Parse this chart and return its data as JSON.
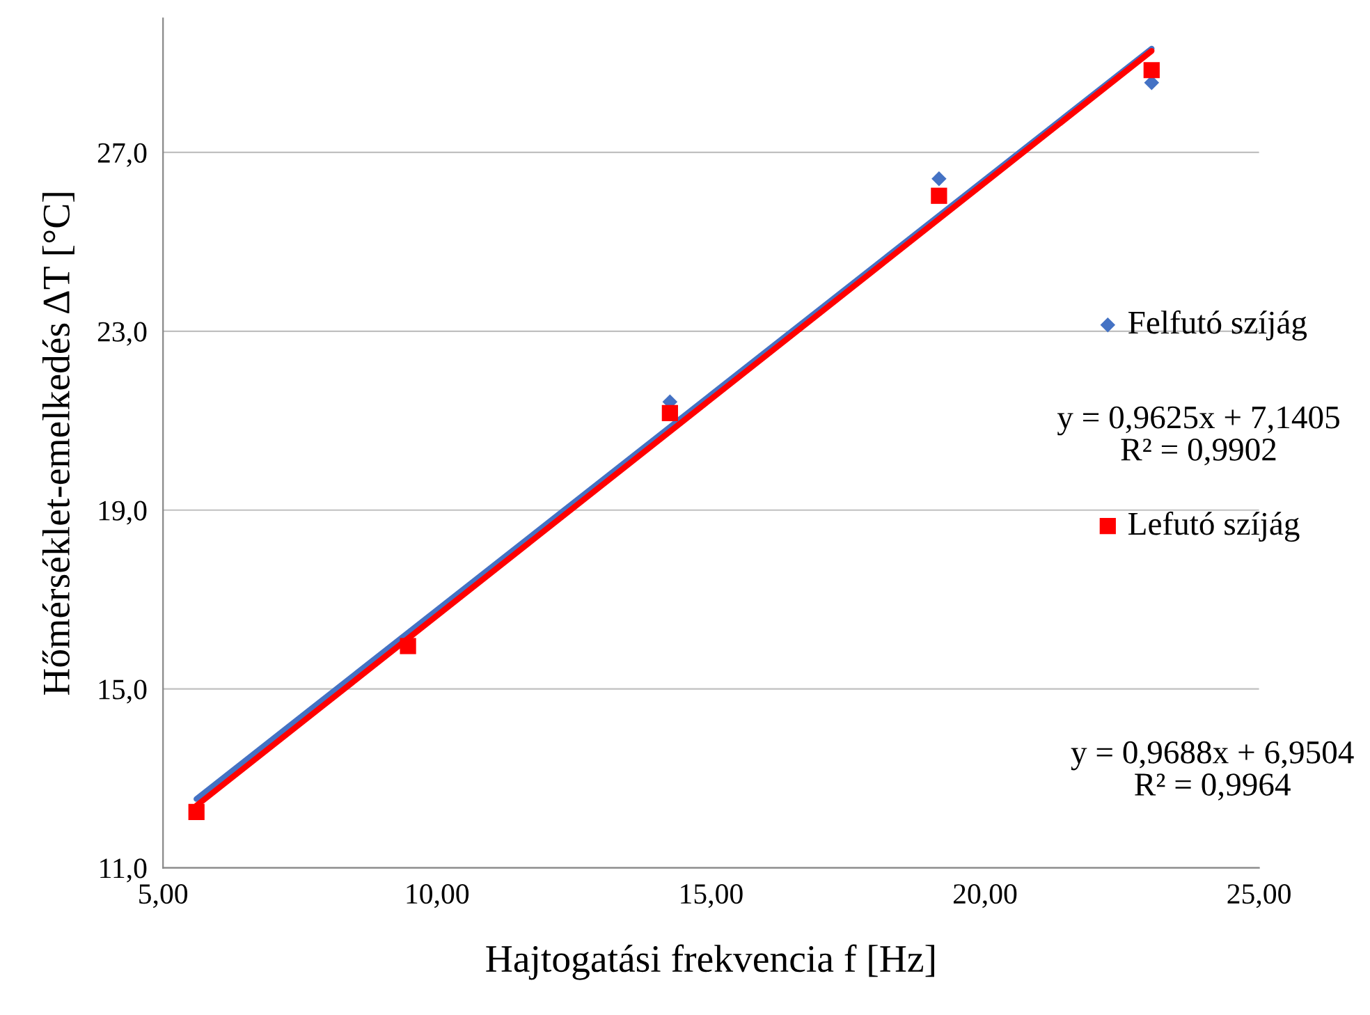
{
  "chart_data": {
    "type": "scatter",
    "xlabel": "Hajtogatási frekvencia f [Hz]",
    "ylabel": "Hőmérséklet-emelkedés ΔT [°C]",
    "xlim": [
      5,
      25
    ],
    "xticks": [
      {
        "value": 5,
        "label": "5,00"
      },
      {
        "value": 10,
        "label": "10,00"
      },
      {
        "value": 15,
        "label": "15,00"
      },
      {
        "value": 20,
        "label": "20,00"
      },
      {
        "value": 25,
        "label": "25,00"
      }
    ],
    "ylim": [
      11,
      30
    ],
    "yticks": [
      {
        "value": 11,
        "label": "11,0"
      },
      {
        "value": 15,
        "label": "15,0"
      },
      {
        "value": 19,
        "label": "19,0"
      },
      {
        "value": 23,
        "label": "23,0"
      },
      {
        "value": 27,
        "label": "27,0"
      }
    ],
    "grid": "y",
    "legend": "right",
    "series": [
      {
        "type": "line",
        "color": "#4472c4",
        "x": [
          5.61,
          23.04
        ],
        "values": [
          12.54,
          29.32
        ],
        "marker": "none"
      },
      {
        "type": "line",
        "color": "#ff0000",
        "x": [
          5.61,
          23.04
        ],
        "values": [
          12.39,
          29.27
        ],
        "marker": "none"
      },
      {
        "name": "Felfutó szíjág",
        "color": "#4472c4",
        "marker": "diamond",
        "x": [
          14.25,
          19.16,
          23.04
        ],
        "values": [
          21.42,
          26.41,
          28.56
        ]
      },
      {
        "name": "Lefutó szíjág",
        "color": "#ff0000",
        "marker": "square",
        "x": [
          5.61,
          9.47,
          14.25,
          19.16,
          23.04
        ],
        "values": [
          12.25,
          15.96,
          21.17,
          26.03,
          28.84
        ]
      }
    ],
    "annotations": [
      "y = 0,9625x + 7,1405\nR² = 0,9902",
      "y = 0,9688x + 6,9504\nR² = 0,9964"
    ]
  }
}
